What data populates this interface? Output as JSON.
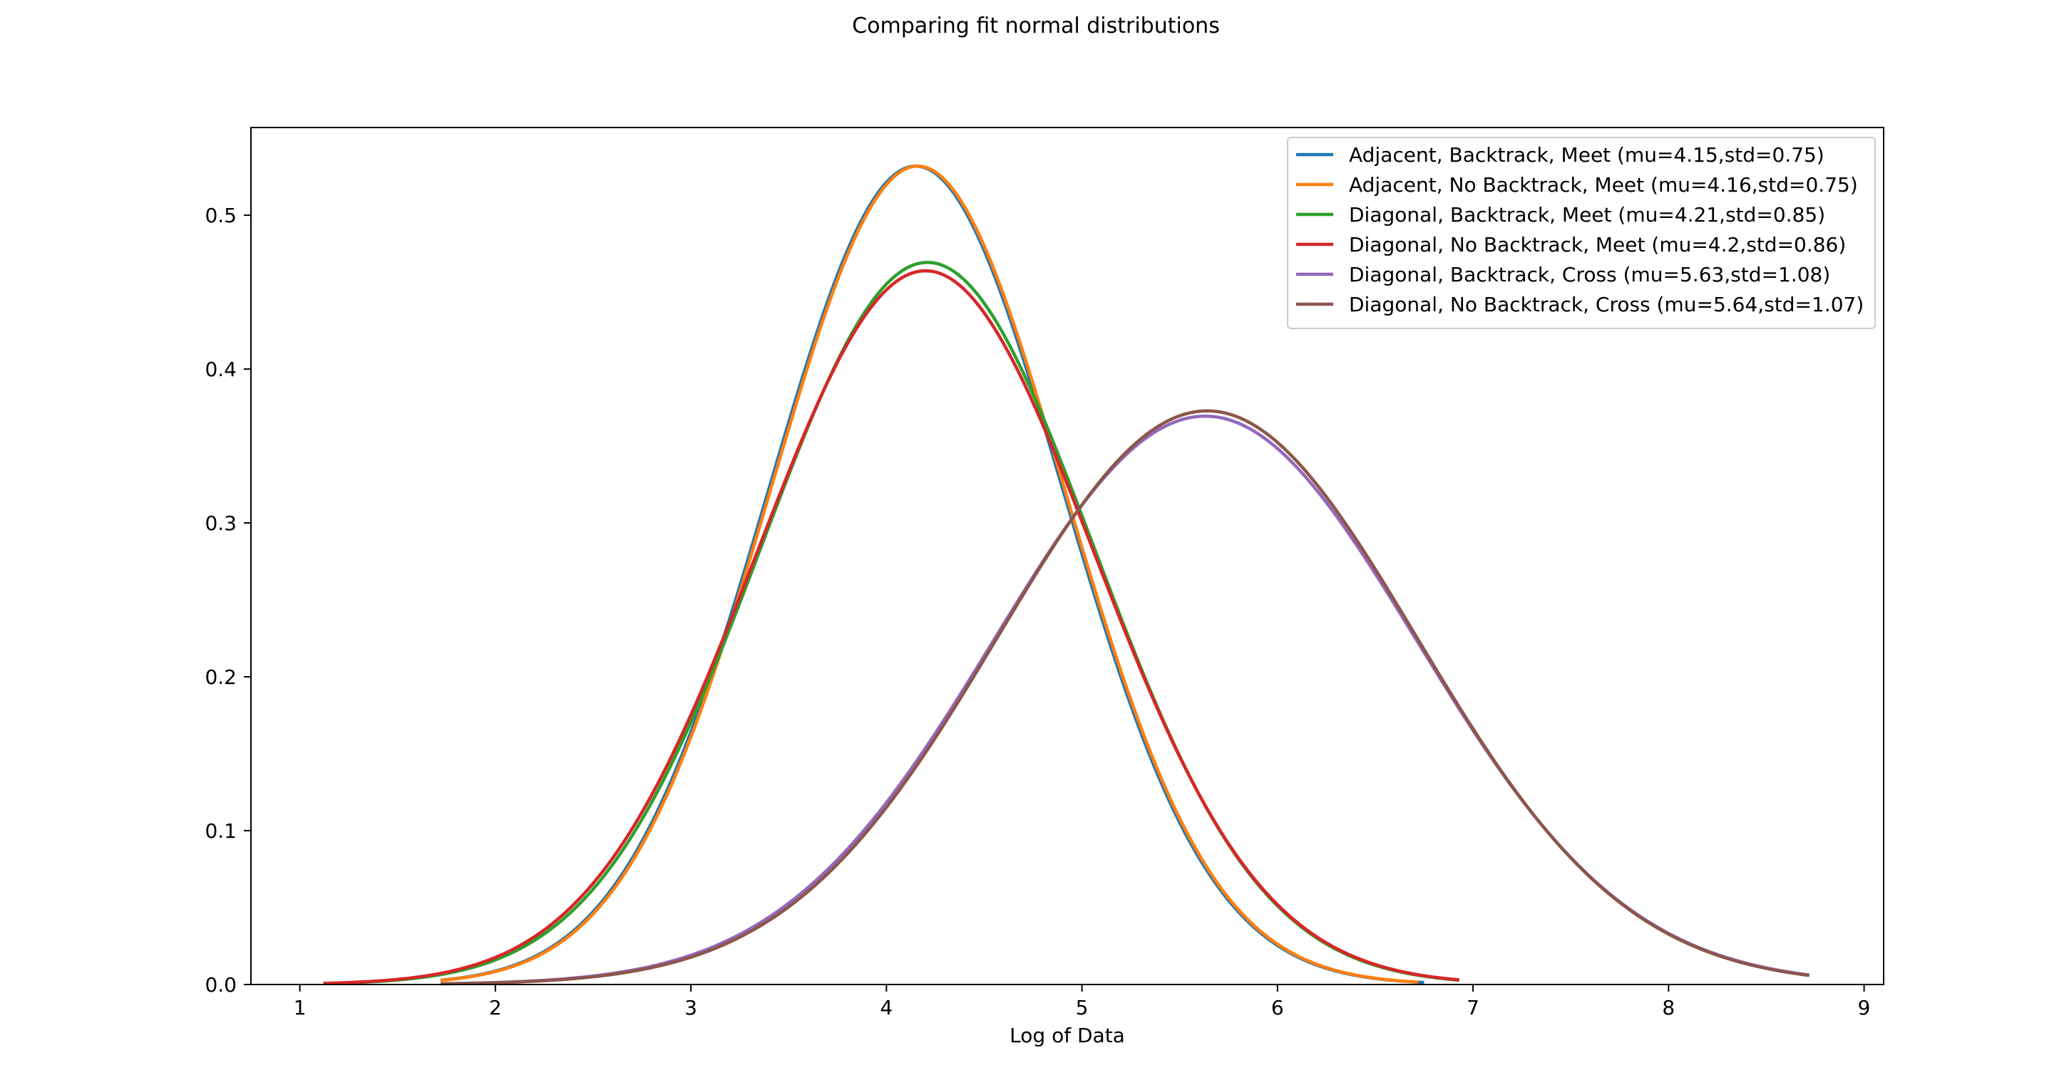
{
  "chart_data": {
    "type": "line",
    "title": "Comparing fit normal distributions",
    "xlabel": "Log of Data",
    "ylabel": "",
    "xlim": [
      0.75,
      9.1
    ],
    "ylim": [
      0.0,
      0.557
    ],
    "xticks": [
      1,
      2,
      3,
      4,
      5,
      6,
      7,
      8,
      9
    ],
    "xtick_labels": [
      "1",
      "2",
      "3",
      "4",
      "5",
      "6",
      "7",
      "8",
      "9"
    ],
    "yticks": [
      0.0,
      0.1,
      0.2,
      0.3,
      0.4,
      0.5
    ],
    "ytick_labels": [
      "0.0",
      "0.1",
      "0.2",
      "0.3",
      "0.4",
      "0.5"
    ],
    "grid": false,
    "legend_position": "top-right",
    "series": [
      {
        "name": "Adjacent, Backtrack, Meet (mu=4.15,std=0.75)",
        "mu": 4.15,
        "std": 0.75,
        "x_range": [
          1.72,
          6.75
        ],
        "color": "#1f77b4"
      },
      {
        "name": "Adjacent, No Backtrack, Meet (mu=4.16,std=0.75)",
        "mu": 4.16,
        "std": 0.75,
        "x_range": [
          1.72,
          6.72
        ],
        "color": "#ff7f0e"
      },
      {
        "name": "Diagonal, Backtrack, Meet (mu=4.21,std=0.85)",
        "mu": 4.21,
        "std": 0.85,
        "x_range": [
          1.12,
          6.93
        ],
        "color": "#2ca02c"
      },
      {
        "name": "Diagonal, No Backtrack, Meet (mu=4.2,std=0.86)",
        "mu": 4.2,
        "std": 0.86,
        "x_range": [
          1.12,
          6.93
        ],
        "color": "#d62728"
      },
      {
        "name": "Diagonal, Backtrack, Cross (mu=5.63,std=1.08)",
        "mu": 5.63,
        "std": 1.08,
        "x_range": [
          1.72,
          8.72
        ],
        "color": "#9467bd"
      },
      {
        "name": "Diagonal, No Backtrack, Cross (mu=5.64,std=1.07)",
        "mu": 5.64,
        "std": 1.07,
        "x_range": [
          1.72,
          8.72
        ],
        "color": "#8c564b"
      }
    ]
  }
}
